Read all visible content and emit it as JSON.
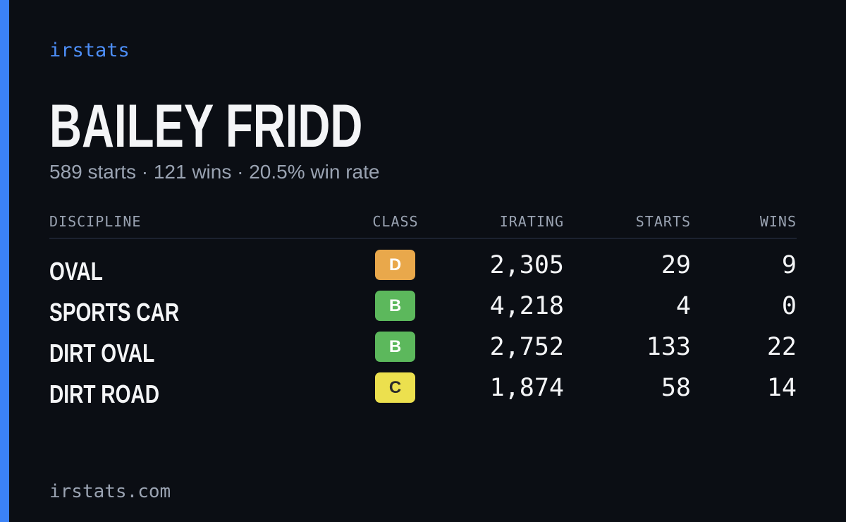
{
  "brand": "irstats",
  "driver": {
    "name": "BAILEY FRIDD",
    "summary": "589 starts · 121 wins · 20.5% win rate"
  },
  "table": {
    "headers": [
      "DISCIPLINE",
      "CLASS",
      "IRATING",
      "STARTS",
      "WINS"
    ],
    "rows": [
      {
        "discipline": "OVAL",
        "class": "D",
        "class_color": "#e9a84b",
        "class_text_color": "#ffffff",
        "irating": "2,305",
        "starts": "29",
        "wins": "9"
      },
      {
        "discipline": "SPORTS CAR",
        "class": "B",
        "class_color": "#5cb85c",
        "class_text_color": "#ffffff",
        "irating": "4,218",
        "starts": "4",
        "wins": "0"
      },
      {
        "discipline": "DIRT OVAL",
        "class": "B",
        "class_color": "#5cb85c",
        "class_text_color": "#ffffff",
        "irating": "2,752",
        "starts": "133",
        "wins": "22"
      },
      {
        "discipline": "DIRT ROAD",
        "class": "C",
        "class_color": "#ece04e",
        "class_text_color": "#2a2a2a",
        "irating": "1,874",
        "starts": "58",
        "wins": "14"
      }
    ]
  },
  "footer": "irstats.com"
}
